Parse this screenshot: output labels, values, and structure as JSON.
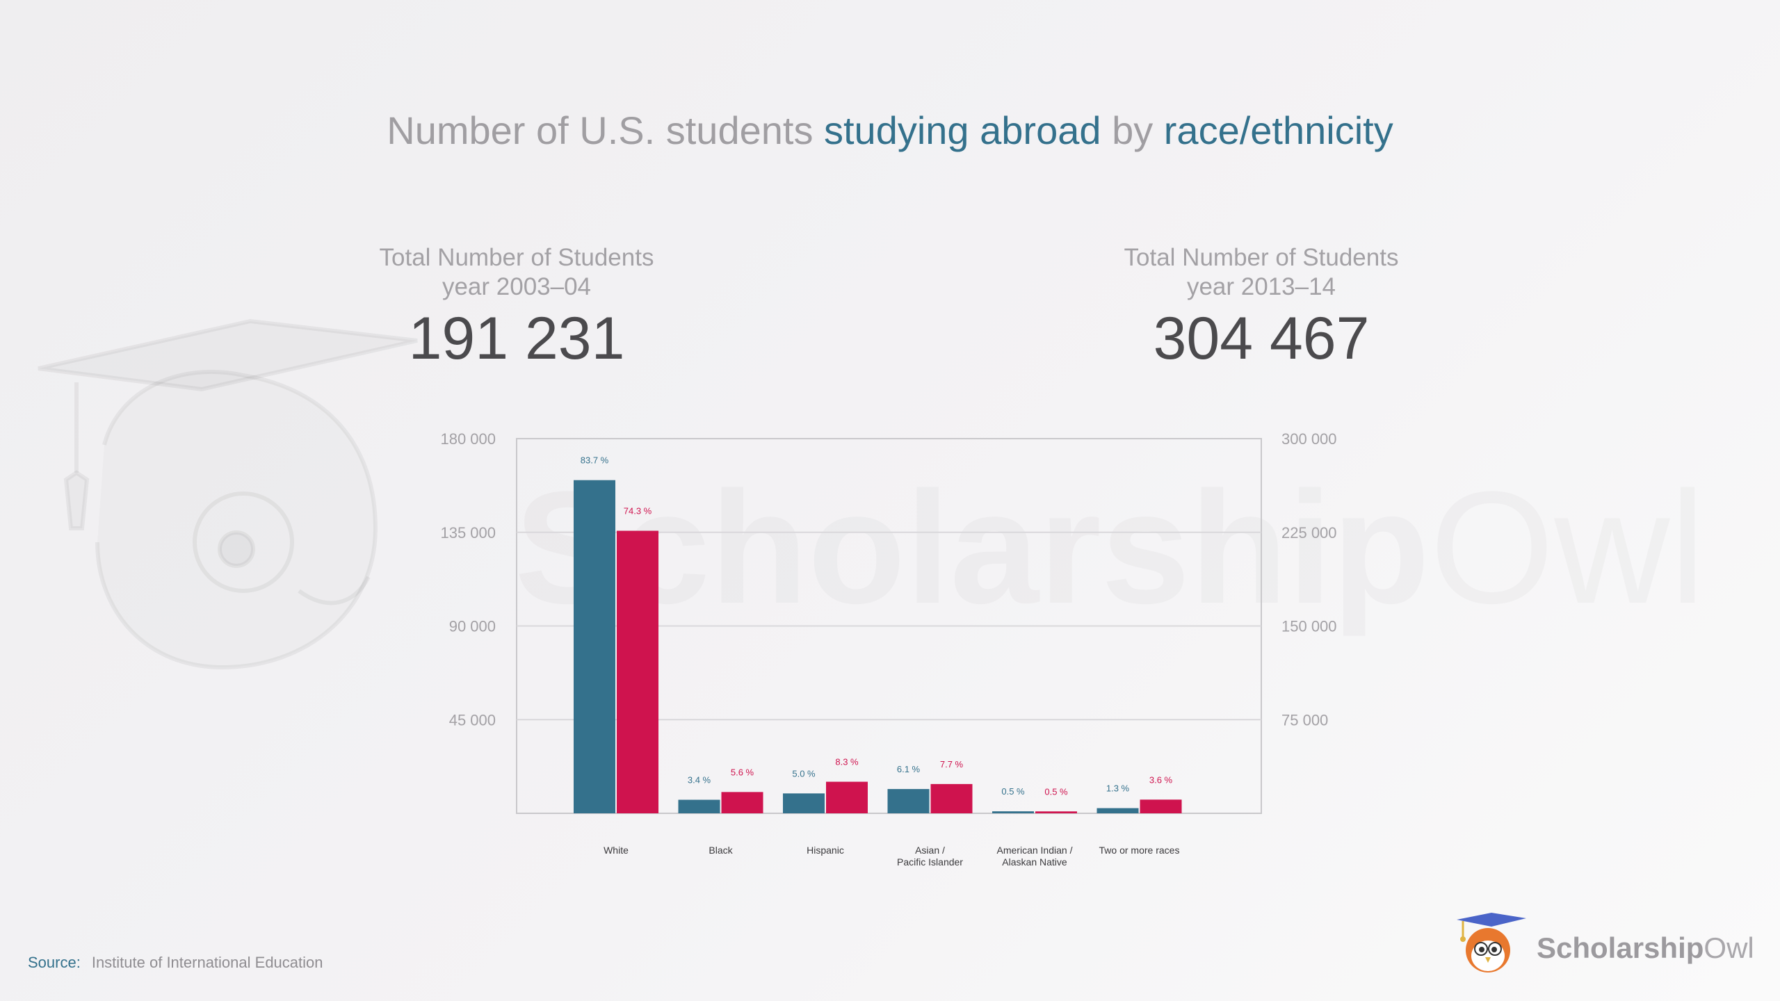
{
  "title": {
    "part1": "Number of U.S. students ",
    "part2": "studying abroad",
    "part3": " by ",
    "part4": "race/ethnicity"
  },
  "totals": {
    "left": {
      "label_line1": "Total Number of Students",
      "label_line2": "year 2003–04",
      "value": "191 231"
    },
    "right": {
      "label_line1": "Total Number of Students",
      "label_line2": "year 2013–14",
      "value": "304 467"
    }
  },
  "source": {
    "label": "Source:",
    "value": "Institute of International Education"
  },
  "brand": {
    "part1": "Scholarship",
    "part2": "Owl"
  },
  "watermark": {
    "part1": "Scholarship",
    "part2": "Owl"
  },
  "colors": {
    "series_2003": "#34718c",
    "series_2013": "#cf134e"
  },
  "chart_data": {
    "type": "bar",
    "categories": [
      [
        "White"
      ],
      [
        "Black"
      ],
      [
        "Hispanic"
      ],
      [
        "Asian /",
        "Pacific Islander"
      ],
      [
        "American Indian /",
        "Alaskan Native"
      ],
      [
        "Two or more races"
      ]
    ],
    "series": [
      {
        "axis": "left",
        "values": [
          160060,
          6502,
          9562,
          11665,
          956,
          2486
        ],
        "labels": [
          "83.7 %",
          "3.4 %",
          "5.0 %",
          "6.1 %",
          "0.5 %",
          "1.3 %"
        ]
      },
      {
        "axis": "right",
        "values": [
          226219,
          17050,
          25271,
          23444,
          1522,
          10961
        ],
        "labels": [
          "74.3 %",
          "5.6 %",
          "8.3 %",
          "7.7 %",
          "0.5 %",
          "3.6 %"
        ]
      }
    ],
    "y_left": {
      "range": [
        0,
        180000
      ],
      "ticks": [
        180000,
        135000,
        90000,
        45000
      ],
      "tick_labels": [
        "180 000",
        "135 000",
        "90 000",
        "45 000"
      ]
    },
    "y_right": {
      "range": [
        0,
        300000
      ],
      "ticks": [
        300000,
        225000,
        150000,
        75000
      ],
      "tick_labels": [
        "300 000",
        "225 000",
        "150 000",
        "75 000"
      ]
    },
    "grid": true
  }
}
